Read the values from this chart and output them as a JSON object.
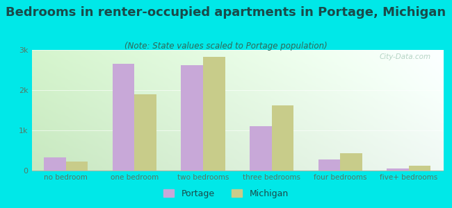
{
  "title": "Bedrooms in renter-occupied apartments in Portage, Michigan",
  "subtitle": "(Note: State values scaled to Portage population)",
  "categories": [
    "no bedroom",
    "one bedroom",
    "two bedrooms",
    "three bedrooms",
    "four bedrooms",
    "five+ bedrooms"
  ],
  "portage_values": [
    320,
    2650,
    2620,
    1100,
    270,
    55
  ],
  "michigan_values": [
    220,
    1900,
    2820,
    1620,
    430,
    120
  ],
  "portage_color": "#c8a8d8",
  "michigan_color": "#c8cc8a",
  "background_outer": "#00e8e8",
  "ylim": [
    0,
    3000
  ],
  "yticks": [
    0,
    1000,
    2000,
    3000
  ],
  "ytick_labels": [
    "0",
    "1k",
    "2k",
    "3k"
  ],
  "bar_width": 0.32,
  "title_fontsize": 13,
  "subtitle_fontsize": 8.5,
  "legend_portage": "Portage",
  "legend_michigan": "Michigan",
  "bg_left_color": "#c8e8c0",
  "bg_right_color": "#e8f4f0",
  "bg_top_color": "#e8f8f0",
  "bg_bottom_color": "#d0ecd8"
}
